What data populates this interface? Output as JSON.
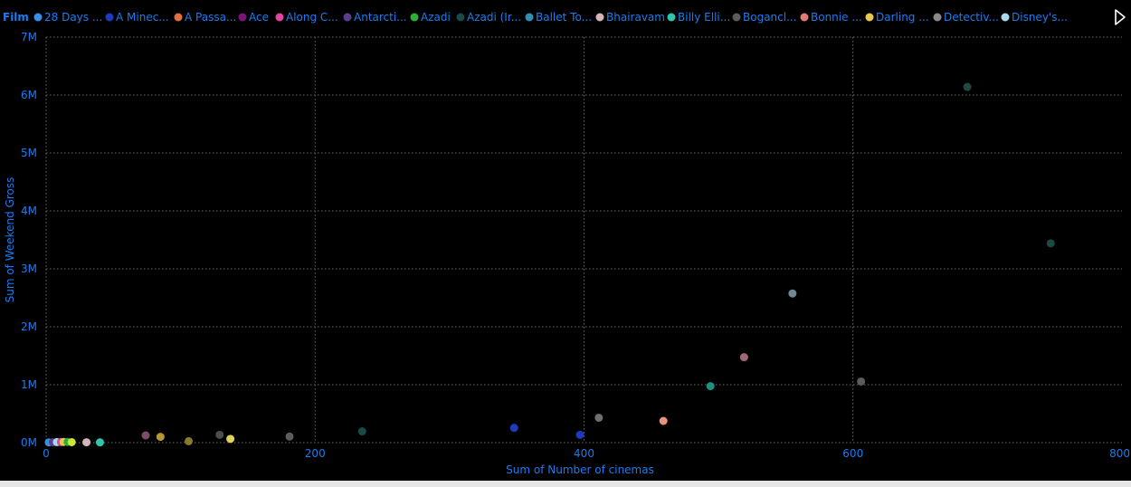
{
  "legend": {
    "title": "Film",
    "items": [
      {
        "label": "28 Days ...",
        "color": "#3a8fe8"
      },
      {
        "label": "A Minec...",
        "color": "#1c3bbf"
      },
      {
        "label": "A Passa...",
        "color": "#e5703f"
      },
      {
        "label": "Ace",
        "color": "#7a1577"
      },
      {
        "label": "Along C...",
        "color": "#e0459f"
      },
      {
        "label": "Antarcti...",
        "color": "#5a3f8f"
      },
      {
        "label": "Azadi",
        "color": "#2eb038"
      },
      {
        "label": "Azadi (Ir...",
        "color": "#1b4a44"
      },
      {
        "label": "Ballet To...",
        "color": "#2f8fb7"
      },
      {
        "label": "Bhairavam",
        "color": "#d6b3b8"
      },
      {
        "label": "Billy Elli...",
        "color": "#33c4ac"
      },
      {
        "label": "Bogancl...",
        "color": "#5c5c5c"
      },
      {
        "label": "Bonnie ...",
        "color": "#e07b75"
      },
      {
        "label": "Darling ...",
        "color": "#e8c94b"
      },
      {
        "label": "Detectiv...",
        "color": "#8a8a8a"
      },
      {
        "label": "Disney's...",
        "color": "#a9d8f0"
      }
    ],
    "more_icon": "play-triangle-icon"
  },
  "colors": {
    "background": "#000000",
    "label_blue": "#1a7cf0",
    "grid": "#6b6b6b"
  },
  "chart_data": {
    "type": "scatter",
    "title": "",
    "xlabel": "Sum of Number of cinemas",
    "ylabel": "Sum of Weekend Gross",
    "xlim": [
      0,
      800
    ],
    "ylim": [
      0,
      7000000
    ],
    "x_ticks": [
      0,
      200,
      400,
      600,
      800
    ],
    "x_tick_labels": [
      "0",
      "200",
      "400",
      "600",
      "800"
    ],
    "y_ticks": [
      0,
      1000000,
      2000000,
      3000000,
      4000000,
      5000000,
      6000000,
      7000000
    ],
    "y_tick_labels": [
      "0M",
      "1M",
      "2M",
      "3M",
      "4M",
      "5M",
      "6M",
      "7M"
    ],
    "grid": true,
    "legend_position": "top",
    "points": [
      {
        "x": 2,
        "y": 4000,
        "color": "#3a8fe8"
      },
      {
        "x": 5,
        "y": 6000,
        "color": "#5a3f8f"
      },
      {
        "x": 8,
        "y": 9000,
        "color": "#a9d8f0"
      },
      {
        "x": 11,
        "y": 10000,
        "color": "#e0459f"
      },
      {
        "x": 13,
        "y": 12000,
        "color": "#e8c94b"
      },
      {
        "x": 16,
        "y": 12000,
        "color": "#2eb038"
      },
      {
        "x": 19,
        "y": 8000,
        "color": "#c8e63a"
      },
      {
        "x": 30,
        "y": 6000,
        "color": "#d6b3b8"
      },
      {
        "x": 40,
        "y": 5000,
        "color": "#33c4ac"
      },
      {
        "x": 74,
        "y": 125000,
        "color": "#7a4f6a"
      },
      {
        "x": 85,
        "y": 100000,
        "color": "#b8962f"
      },
      {
        "x": 106,
        "y": 25000,
        "color": "#8a7a2a"
      },
      {
        "x": 129,
        "y": 135000,
        "color": "#4d4d4d"
      },
      {
        "x": 137,
        "y": 65000,
        "color": "#e0d35a"
      },
      {
        "x": 181,
        "y": 105000,
        "color": "#5c5c5c"
      },
      {
        "x": 235,
        "y": 195000,
        "color": "#1b4a44"
      },
      {
        "x": 348,
        "y": 255000,
        "color": "#1c3bbf"
      },
      {
        "x": 397,
        "y": 135000,
        "color": "#1c3bbf"
      },
      {
        "x": 411,
        "y": 430000,
        "color": "#6f6f6f"
      },
      {
        "x": 459,
        "y": 375000,
        "color": "#e8937a"
      },
      {
        "x": 494,
        "y": 975000,
        "color": "#1f8f7f"
      },
      {
        "x": 519,
        "y": 1475000,
        "color": "#a06a75"
      },
      {
        "x": 555,
        "y": 2575000,
        "color": "#6f8a94"
      },
      {
        "x": 606,
        "y": 1055000,
        "color": "#5c5c5c"
      },
      {
        "x": 685,
        "y": 6140000,
        "color": "#1b4a44"
      },
      {
        "x": 747,
        "y": 3440000,
        "color": "#1b4a44"
      }
    ]
  }
}
